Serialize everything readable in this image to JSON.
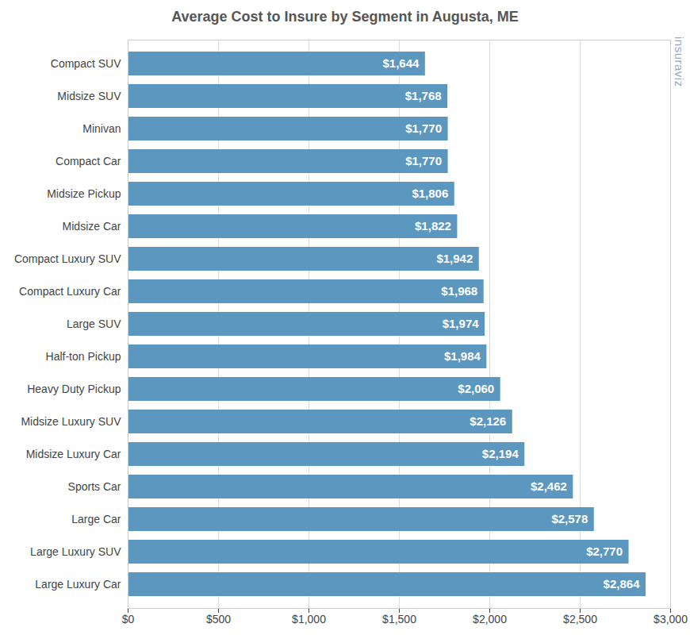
{
  "chart_data": {
    "type": "bar",
    "orientation": "horizontal",
    "title": "Average Cost to Insure by Segment in Augusta, ME",
    "categories": [
      "Compact SUV",
      "Midsize SUV",
      "Minivan",
      "Compact Car",
      "Midsize Pickup",
      "Midsize Car",
      "Compact Luxury SUV",
      "Compact Luxury Car",
      "Large SUV",
      "Half-ton Pickup",
      "Heavy Duty Pickup",
      "Midsize Luxury SUV",
      "Midsize Luxury Car",
      "Sports Car",
      "Large Car",
      "Large Luxury SUV",
      "Large Luxury Car"
    ],
    "values": [
      1644,
      1768,
      1770,
      1770,
      1806,
      1822,
      1942,
      1968,
      1974,
      1984,
      2060,
      2126,
      2194,
      2462,
      2578,
      2770,
      2864
    ],
    "value_labels": [
      "$1,644",
      "$1,768",
      "$1,770",
      "$1,770",
      "$1,806",
      "$1,822",
      "$1,942",
      "$1,968",
      "$1,974",
      "$1,984",
      "$2,060",
      "$2,126",
      "$2,194",
      "$2,462",
      "$2,578",
      "$2,770",
      "$2,864"
    ],
    "data_labels": true,
    "color": "#5b97bf",
    "xlim": [
      0,
      3000
    ],
    "xticks": [
      {
        "value": 0,
        "label": "$0"
      },
      {
        "value": 500,
        "label": "$500"
      },
      {
        "value": 1000,
        "label": "$1,000"
      },
      {
        "value": 1500,
        "label": "$1,500"
      },
      {
        "value": 2000,
        "label": "$2,000"
      },
      {
        "value": 2500,
        "label": "$2,500"
      },
      {
        "value": 3000,
        "label": "$3,000"
      }
    ],
    "grid": true,
    "annotations": [
      "insuraviz"
    ]
  }
}
